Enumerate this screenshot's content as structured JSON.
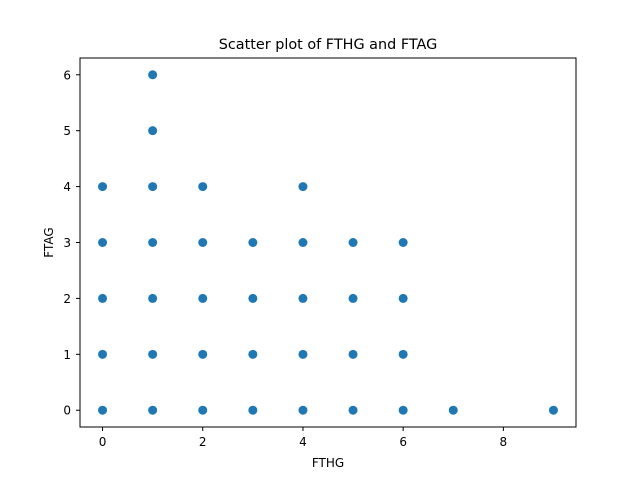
{
  "chart_data": {
    "type": "scatter",
    "title": "Scatter plot of FTHG and FTAG",
    "xlabel": "FTHG",
    "ylabel": "FTAG",
    "xlim": [
      -0.45,
      9.45
    ],
    "ylim": [
      -0.3,
      6.3
    ],
    "xticks": [
      0,
      2,
      4,
      6,
      8
    ],
    "yticks": [
      0,
      1,
      2,
      3,
      4,
      5,
      6
    ],
    "grid": false,
    "marker_color": "#1f77b4",
    "points": [
      {
        "x": 0,
        "y": 0
      },
      {
        "x": 0,
        "y": 1
      },
      {
        "x": 0,
        "y": 2
      },
      {
        "x": 0,
        "y": 3
      },
      {
        "x": 0,
        "y": 4
      },
      {
        "x": 1,
        "y": 0
      },
      {
        "x": 1,
        "y": 1
      },
      {
        "x": 1,
        "y": 2
      },
      {
        "x": 1,
        "y": 3
      },
      {
        "x": 1,
        "y": 4
      },
      {
        "x": 1,
        "y": 5
      },
      {
        "x": 1,
        "y": 6
      },
      {
        "x": 2,
        "y": 0
      },
      {
        "x": 2,
        "y": 1
      },
      {
        "x": 2,
        "y": 2
      },
      {
        "x": 2,
        "y": 3
      },
      {
        "x": 2,
        "y": 4
      },
      {
        "x": 3,
        "y": 0
      },
      {
        "x": 3,
        "y": 1
      },
      {
        "x": 3,
        "y": 2
      },
      {
        "x": 3,
        "y": 3
      },
      {
        "x": 4,
        "y": 0
      },
      {
        "x": 4,
        "y": 1
      },
      {
        "x": 4,
        "y": 2
      },
      {
        "x": 4,
        "y": 3
      },
      {
        "x": 4,
        "y": 4
      },
      {
        "x": 5,
        "y": 0
      },
      {
        "x": 5,
        "y": 1
      },
      {
        "x": 5,
        "y": 2
      },
      {
        "x": 5,
        "y": 3
      },
      {
        "x": 6,
        "y": 0
      },
      {
        "x": 6,
        "y": 1
      },
      {
        "x": 6,
        "y": 2
      },
      {
        "x": 6,
        "y": 3
      },
      {
        "x": 7,
        "y": 0
      },
      {
        "x": 9,
        "y": 0
      }
    ]
  }
}
